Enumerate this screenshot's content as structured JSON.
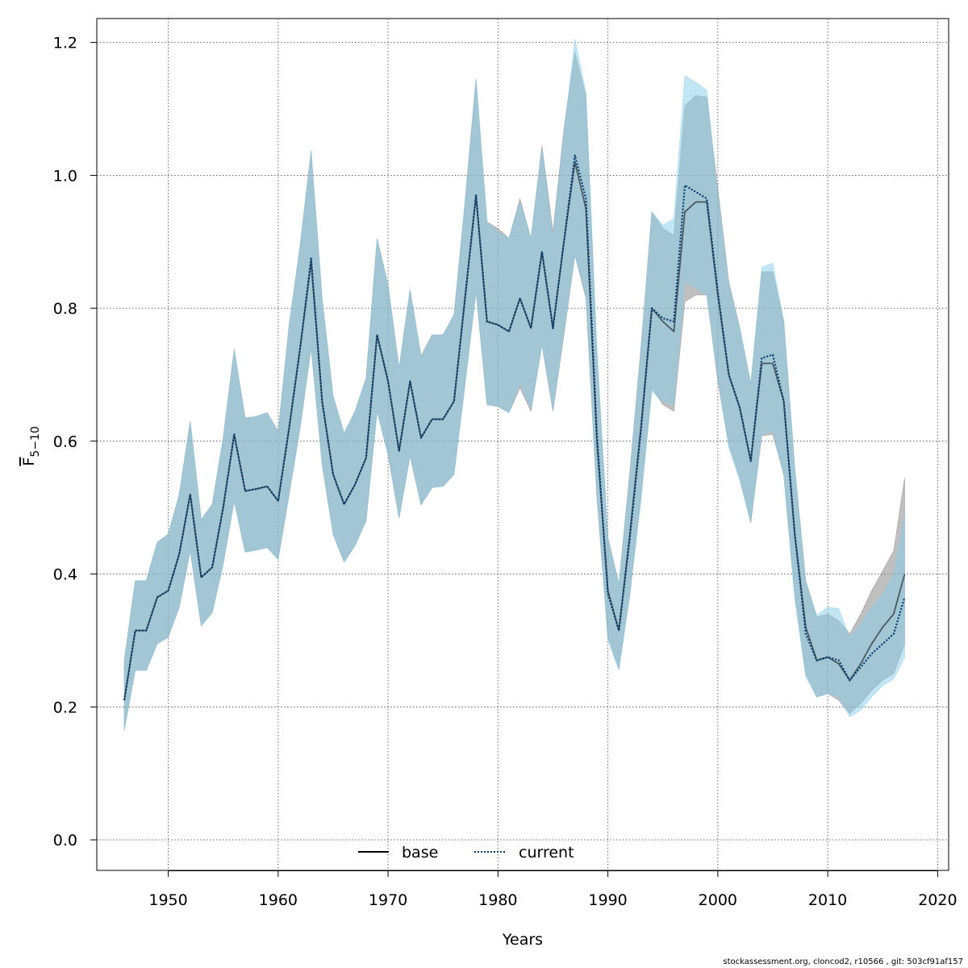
{
  "chart_data": {
    "type": "area",
    "xlabel": "Years",
    "ylabel": "F̅ 5-10",
    "ylabel_main": "F",
    "ylabel_sub": "5−10",
    "xlim": [
      1943.5,
      2021
    ],
    "ylim": [
      -0.046,
      1.236
    ],
    "xticks": [
      1950,
      1960,
      1970,
      1980,
      1990,
      2000,
      2010,
      2020
    ],
    "yticks": [
      0.0,
      0.2,
      0.4,
      0.6,
      0.8,
      1.0,
      1.2
    ],
    "ytick_labels": [
      "0.0",
      "0.2",
      "0.4",
      "0.6",
      "0.8",
      "1.0",
      "1.2"
    ],
    "grid": true,
    "legend_position": "bottom",
    "x": [
      1946,
      1947,
      1948,
      1949,
      1950,
      1951,
      1952,
      1953,
      1954,
      1955,
      1956,
      1957,
      1958,
      1959,
      1960,
      1961,
      1962,
      1963,
      1964,
      1965,
      1966,
      1967,
      1968,
      1969,
      1970,
      1971,
      1972,
      1973,
      1974,
      1975,
      1976,
      1977,
      1978,
      1979,
      1980,
      1981,
      1982,
      1983,
      1984,
      1985,
      1986,
      1987,
      1988,
      1989,
      1990,
      1991,
      1992,
      1993,
      1994,
      1995,
      1996,
      1997,
      1998,
      1999,
      2000,
      2001,
      2002,
      2003,
      2004,
      2005,
      2006,
      2007,
      2008,
      2009,
      2010,
      2011,
      2012,
      2013,
      2014,
      2015,
      2016,
      2017
    ],
    "series": [
      {
        "name": "base",
        "color": "#000000",
        "line": "solid",
        "band_color": "rgba(128,128,128,0.5)",
        "values": [
          0.21,
          0.315,
          0.315,
          0.365,
          0.375,
          0.43,
          0.52,
          0.395,
          0.41,
          0.5,
          0.61,
          0.525,
          0.528,
          0.532,
          0.51,
          0.62,
          0.74,
          0.87,
          0.66,
          0.55,
          0.505,
          0.535,
          0.575,
          0.76,
          0.69,
          0.585,
          0.69,
          0.605,
          0.633,
          0.633,
          0.66,
          0.815,
          0.97,
          0.78,
          0.775,
          0.765,
          0.815,
          0.77,
          0.885,
          0.77,
          0.9,
          1.02,
          0.95,
          0.6,
          0.375,
          0.315,
          0.46,
          0.62,
          0.8,
          0.78,
          0.765,
          0.945,
          0.96,
          0.96,
          0.82,
          0.7,
          0.65,
          0.57,
          0.717,
          0.717,
          0.66,
          0.46,
          0.32,
          0.27,
          0.275,
          0.265,
          0.24,
          0.265,
          0.295,
          0.32,
          0.34,
          0.4
        ],
        "lower": [
          0.165,
          0.255,
          0.255,
          0.295,
          0.305,
          0.35,
          0.435,
          0.322,
          0.342,
          0.415,
          0.51,
          0.433,
          0.436,
          0.44,
          0.422,
          0.52,
          0.62,
          0.74,
          0.565,
          0.46,
          0.418,
          0.443,
          0.48,
          0.645,
          0.58,
          0.484,
          0.578,
          0.504,
          0.53,
          0.532,
          0.55,
          0.685,
          0.825,
          0.655,
          0.652,
          0.643,
          0.68,
          0.645,
          0.745,
          0.645,
          0.76,
          0.88,
          0.815,
          0.515,
          0.305,
          0.258,
          0.37,
          0.515,
          0.68,
          0.655,
          0.645,
          0.81,
          0.82,
          0.82,
          0.69,
          0.595,
          0.545,
          0.477,
          0.608,
          0.61,
          0.55,
          0.37,
          0.25,
          0.215,
          0.22,
          0.21,
          0.19,
          0.205,
          0.225,
          0.24,
          0.25,
          0.295
        ],
        "upper": [
          0.27,
          0.39,
          0.39,
          0.448,
          0.46,
          0.52,
          0.63,
          0.482,
          0.505,
          0.605,
          0.738,
          0.635,
          0.637,
          0.643,
          0.615,
          0.775,
          0.895,
          1.037,
          0.815,
          0.668,
          0.612,
          0.645,
          0.695,
          0.905,
          0.835,
          0.71,
          0.828,
          0.728,
          0.76,
          0.76,
          0.79,
          0.96,
          1.145,
          0.93,
          0.92,
          0.905,
          0.965,
          0.905,
          1.045,
          0.915,
          1.07,
          1.185,
          1.12,
          0.73,
          0.455,
          0.385,
          0.555,
          0.74,
          0.945,
          0.92,
          0.91,
          1.105,
          1.12,
          1.118,
          0.98,
          0.84,
          0.77,
          0.686,
          0.855,
          0.855,
          0.78,
          0.56,
          0.39,
          0.335,
          0.34,
          0.33,
          0.31,
          0.34,
          0.375,
          0.405,
          0.435,
          0.545
        ]
      },
      {
        "name": "current",
        "color": "#003a70",
        "line": "dotted",
        "band_color": "rgba(135,206,235,0.5)",
        "values": [
          0.21,
          0.315,
          0.315,
          0.365,
          0.375,
          0.43,
          0.52,
          0.395,
          0.41,
          0.5,
          0.61,
          0.525,
          0.528,
          0.532,
          0.51,
          0.62,
          0.74,
          0.875,
          0.66,
          0.55,
          0.505,
          0.535,
          0.575,
          0.76,
          0.69,
          0.585,
          0.69,
          0.605,
          0.633,
          0.633,
          0.66,
          0.815,
          0.97,
          0.78,
          0.775,
          0.765,
          0.815,
          0.77,
          0.885,
          0.77,
          0.9,
          1.03,
          0.965,
          0.61,
          0.37,
          0.315,
          0.455,
          0.615,
          0.8,
          0.785,
          0.78,
          0.985,
          0.975,
          0.965,
          0.825,
          0.7,
          0.65,
          0.57,
          0.725,
          0.73,
          0.66,
          0.46,
          0.31,
          0.27,
          0.275,
          0.27,
          0.24,
          0.26,
          0.28,
          0.295,
          0.31,
          0.365
        ],
        "lower": [
          0.165,
          0.255,
          0.255,
          0.295,
          0.305,
          0.35,
          0.435,
          0.322,
          0.342,
          0.415,
          0.51,
          0.433,
          0.436,
          0.44,
          0.422,
          0.52,
          0.62,
          0.742,
          0.565,
          0.46,
          0.418,
          0.443,
          0.48,
          0.645,
          0.58,
          0.484,
          0.578,
          0.504,
          0.53,
          0.532,
          0.55,
          0.685,
          0.825,
          0.655,
          0.652,
          0.643,
          0.688,
          0.648,
          0.745,
          0.648,
          0.765,
          0.88,
          0.82,
          0.52,
          0.3,
          0.255,
          0.37,
          0.51,
          0.675,
          0.66,
          0.655,
          0.84,
          0.83,
          0.82,
          0.695,
          0.59,
          0.54,
          0.478,
          0.61,
          0.615,
          0.548,
          0.362,
          0.245,
          0.215,
          0.22,
          0.215,
          0.185,
          0.195,
          0.215,
          0.232,
          0.242,
          0.275
        ],
        "upper": [
          0.27,
          0.39,
          0.39,
          0.448,
          0.46,
          0.52,
          0.63,
          0.482,
          0.505,
          0.605,
          0.738,
          0.635,
          0.637,
          0.643,
          0.615,
          0.775,
          0.895,
          1.037,
          0.815,
          0.668,
          0.612,
          0.645,
          0.695,
          0.905,
          0.835,
          0.71,
          0.828,
          0.728,
          0.76,
          0.76,
          0.79,
          0.96,
          1.145,
          0.93,
          0.915,
          0.905,
          0.96,
          0.905,
          1.04,
          0.905,
          1.065,
          1.205,
          1.125,
          0.74,
          0.455,
          0.385,
          0.55,
          0.735,
          0.945,
          0.925,
          0.935,
          1.15,
          1.14,
          1.128,
          0.97,
          0.835,
          0.77,
          0.687,
          0.862,
          0.868,
          0.78,
          0.56,
          0.388,
          0.338,
          0.35,
          0.348,
          0.305,
          0.325,
          0.35,
          0.37,
          0.4,
          0.49
        ]
      }
    ]
  },
  "footer_text": "stockassessment.org, cloncod2, r10566 , git: 503cf91af157"
}
